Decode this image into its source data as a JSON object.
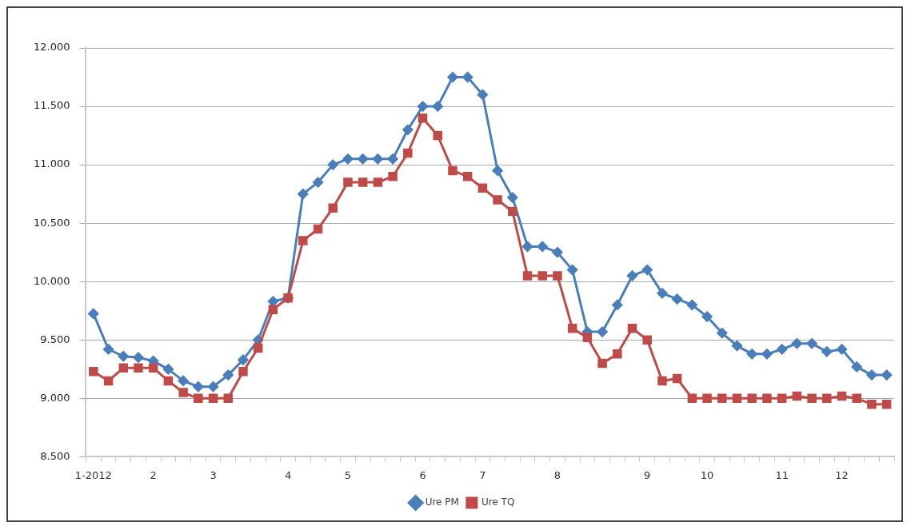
{
  "chart_data": {
    "type": "line",
    "categories": [
      "1-2012",
      null,
      null,
      null,
      "2",
      null,
      null,
      null,
      "3",
      null,
      null,
      null,
      null,
      "4",
      null,
      null,
      null,
      "5",
      null,
      null,
      null,
      null,
      "6",
      null,
      null,
      null,
      "7",
      null,
      null,
      null,
      null,
      "8",
      null,
      null,
      null,
      null,
      null,
      "9",
      null,
      null,
      null,
      "10",
      null,
      null,
      null,
      null,
      "11",
      null,
      null,
      null,
      "12",
      null,
      null,
      null
    ],
    "series": [
      {
        "name": "Ure PM",
        "color": "#4a7ebb",
        "marker": "diamond",
        "values": [
          9725,
          9420,
          9360,
          9350,
          9320,
          9250,
          9150,
          9100,
          9100,
          9200,
          9330,
          9500,
          9830,
          9860,
          10750,
          10850,
          11000,
          11050,
          11050,
          11050,
          11050,
          11300,
          11500,
          11500,
          11750,
          11750,
          11600,
          10950,
          10720,
          10300,
          10300,
          10250,
          10100,
          9570,
          9570,
          9800,
          10050,
          10100,
          9900,
          9850,
          9800,
          9700,
          9560,
          9450,
          9380,
          9380,
          9420,
          9470,
          9470,
          9400,
          9420,
          9270,
          9200,
          9200
        ]
      },
      {
        "name": "Ure TQ",
        "color": "#be4b48",
        "marker": "square",
        "values": [
          9230,
          9150,
          9260,
          9260,
          9260,
          9150,
          9050,
          9000,
          9000,
          9000,
          9230,
          9430,
          9760,
          9860,
          10350,
          10450,
          10630,
          10850,
          10850,
          10850,
          10900,
          11100,
          11400,
          11250,
          10950,
          10900,
          10800,
          10700,
          10600,
          10050,
          10050,
          10050,
          9600,
          9520,
          9300,
          9380,
          9600,
          9500,
          9150,
          9170,
          9000,
          9000,
          9000,
          9000,
          9000,
          9000,
          9000,
          9020,
          9000,
          9000,
          9020,
          9000,
          8950,
          8950
        ]
      }
    ],
    "ylim": [
      8500,
      12000
    ],
    "yticks": [
      {
        "value": 8500,
        "label": "8.500"
      },
      {
        "value": 9000,
        "label": "9.000"
      },
      {
        "value": 9500,
        "label": "9.500"
      },
      {
        "value": 10000,
        "label": "10.000"
      },
      {
        "value": 10500,
        "label": "10.500"
      },
      {
        "value": 11000,
        "label": "11.000"
      },
      {
        "value": 11500,
        "label": "11.500"
      },
      {
        "value": 12000,
        "label": "12.000"
      }
    ],
    "grid": "y",
    "legend": "bottom"
  }
}
